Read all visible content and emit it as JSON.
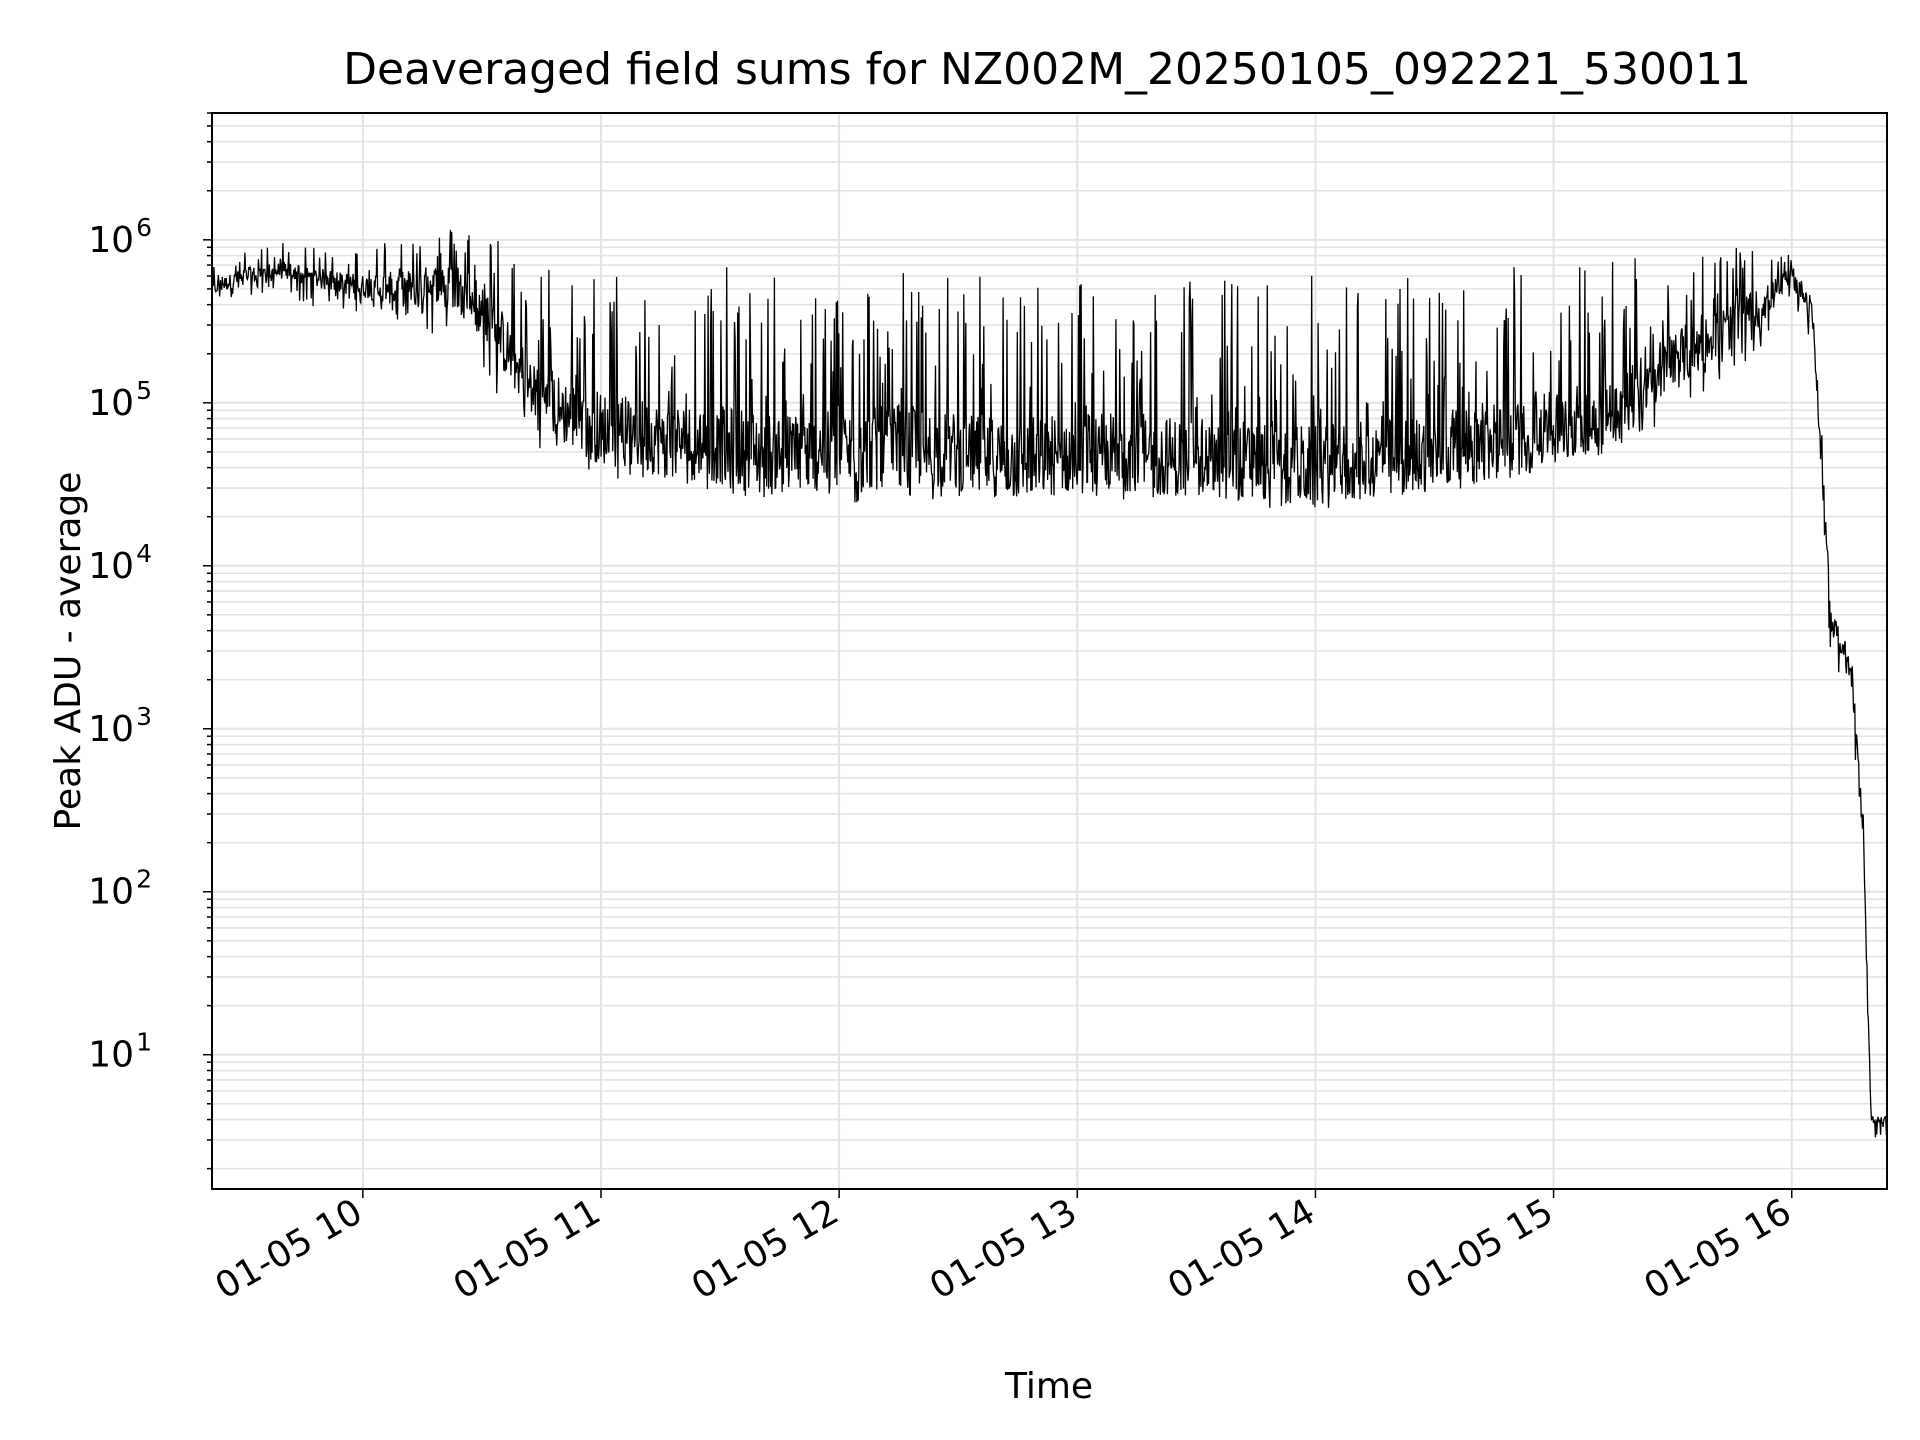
{
  "chart_data": {
    "type": "line",
    "title": "Deaveraged field sums for NZ002M_20250105_092221_530011",
    "xlabel": "Time",
    "ylabel": "Peak ADU - average",
    "yscale": "log",
    "ylim": [
      1.5,
      6000000
    ],
    "xlim": [
      "2025-01-05 09:22",
      "2025-01-05 16:24"
    ],
    "grid": true,
    "x_ticks": [
      "01-05 10",
      "01-05 11",
      "01-05 12",
      "01-05 13",
      "01-05 14",
      "01-05 15",
      "01-05 16"
    ],
    "y_ticks": [
      {
        "base": "10",
        "exp": "1",
        "value": 10
      },
      {
        "base": "10",
        "exp": "2",
        "value": 100
      },
      {
        "base": "10",
        "exp": "3",
        "value": 1000
      },
      {
        "base": "10",
        "exp": "4",
        "value": 10000
      },
      {
        "base": "10",
        "exp": "5",
        "value": 100000
      },
      {
        "base": "10",
        "exp": "6",
        "value": 1000000
      }
    ],
    "line_color": "#000000",
    "series": [
      {
        "x": [
          "2025-01-05 09:22",
          "2025-01-05 09:30",
          "2025-01-05 09:40",
          "2025-01-05 09:45",
          "2025-01-05 10:00",
          "2025-01-05 10:10",
          "2025-01-05 10:20",
          "2025-01-05 10:30",
          "2025-01-05 10:40",
          "2025-01-05 10:50",
          "2025-01-05 11:00",
          "2025-01-05 11:15",
          "2025-01-05 11:30",
          "2025-01-05 11:45",
          "2025-01-05 12:00",
          "2025-01-05 12:15",
          "2025-01-05 12:30",
          "2025-01-05 12:45",
          "2025-01-05 13:00",
          "2025-01-05 13:15",
          "2025-01-05 13:30",
          "2025-01-05 13:45",
          "2025-01-05 14:00",
          "2025-01-05 14:15",
          "2025-01-05 14:30",
          "2025-01-05 14:45",
          "2025-01-05 15:00",
          "2025-01-05 15:15",
          "2025-01-05 15:30",
          "2025-01-05 15:45",
          "2025-01-05 15:55",
          "2025-01-05 16:00",
          "2025-01-05 16:05",
          "2025-01-05 16:08",
          "2025-01-05 16:10",
          "2025-01-05 16:15",
          "2025-01-05 16:18",
          "2025-01-05 16:20",
          "2025-01-05 16:24"
        ],
        "y": [
          500000,
          600000,
          650000,
          600000,
          520000,
          500000,
          550000,
          400000,
          150000,
          90000,
          70000,
          60000,
          55000,
          50000,
          50000,
          55000,
          50000,
          45000,
          50000,
          50000,
          45000,
          45000,
          40000,
          45000,
          50000,
          55000,
          70000,
          90000,
          180000,
          300000,
          450000,
          600000,
          400000,
          30000,
          4000,
          2500,
          200,
          4,
          4
        ],
        "y_upper": [
          700000,
          850000,
          1000000,
          900000,
          900000,
          1300000,
          1200000,
          1400000,
          900000,
          700000,
          700000,
          600000,
          700000,
          600000,
          600000,
          700000,
          600000,
          650000,
          650000,
          600000,
          650000,
          600000,
          650000,
          600000,
          650000,
          700000,
          800000,
          900000,
          1000000,
          900000,
          850000,
          800000,
          450000,
          70000,
          5000,
          3500,
          300,
          4,
          4
        ],
        "y_lower": [
          400000,
          450000,
          500000,
          400000,
          350000,
          300000,
          250000,
          150000,
          60000,
          45000,
          35000,
          30000,
          28000,
          25000,
          22000,
          25000,
          25000,
          22000,
          22000,
          25000,
          25000,
          22000,
          22000,
          25000,
          28000,
          32000,
          40000,
          50000,
          80000,
          150000,
          250000,
          300000,
          250000,
          12000,
          2500,
          1800,
          50,
          3,
          3
        ]
      }
    ]
  }
}
